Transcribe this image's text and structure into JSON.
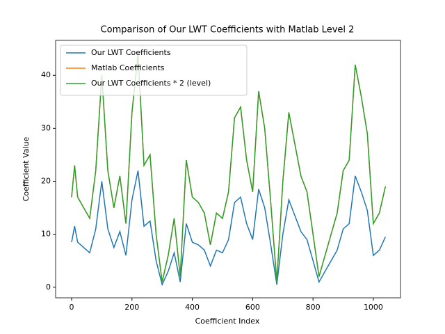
{
  "chart_data": {
    "type": "line",
    "title": "Comparison of Our LWT Coefficients with Matlab Level 2",
    "x_label": "Coefficient Index",
    "y_label": "Coefficient Value",
    "x": [
      0,
      10,
      20,
      40,
      60,
      80,
      100,
      120,
      140,
      160,
      180,
      200,
      220,
      240,
      260,
      280,
      300,
      320,
      340,
      360,
      380,
      400,
      420,
      440,
      460,
      480,
      500,
      520,
      540,
      560,
      580,
      600,
      620,
      640,
      660,
      680,
      700,
      720,
      740,
      760,
      780,
      800,
      820,
      840,
      860,
      880,
      900,
      920,
      940,
      960,
      980,
      1000,
      1020,
      1040
    ],
    "series": [
      {
        "name": "Our LWT Coefficients",
        "color": "#1f77b4",
        "values": [
          8.5,
          11.5,
          8.5,
          7.5,
          6.5,
          11,
          20,
          11,
          7.5,
          10.5,
          6,
          16.5,
          22,
          11.5,
          12.5,
          5,
          0.5,
          3,
          6.5,
          1,
          12,
          8.5,
          8,
          7,
          4,
          7,
          6.5,
          9,
          16,
          17,
          12,
          9,
          18.5,
          15,
          8,
          0.5,
          10,
          16.5,
          13.5,
          10.5,
          9,
          5,
          1,
          3,
          5,
          7,
          11,
          12,
          21,
          18,
          14.5,
          6,
          7,
          9.5
        ]
      },
      {
        "name": "Matlab Coefficients",
        "color": "#ff7f0e",
        "values": [
          17,
          23,
          17,
          15,
          13,
          22,
          40,
          22,
          15,
          21,
          12,
          33,
          44,
          23,
          25,
          10,
          1,
          6,
          13,
          2,
          24,
          17,
          16,
          14,
          8,
          14,
          13,
          18,
          32,
          34,
          24,
          18,
          37,
          30,
          16,
          1,
          20,
          33,
          27,
          21,
          18,
          10,
          2,
          6,
          10,
          14,
          22,
          24,
          42,
          36,
          29,
          12,
          14,
          19
        ]
      },
      {
        "name": "Our LWT Coefficients * 2 (level)",
        "color": "#2ca02c",
        "values": [
          17,
          23,
          17,
          15,
          13,
          22,
          40,
          22,
          15,
          21,
          12,
          33,
          44,
          23,
          25,
          10,
          1,
          6,
          13,
          2,
          24,
          17,
          16,
          14,
          8,
          14,
          13,
          18,
          32,
          34,
          24,
          18,
          37,
          30,
          16,
          1,
          20,
          33,
          27,
          21,
          18,
          10,
          2,
          6,
          10,
          14,
          22,
          24,
          42,
          36,
          29,
          12,
          14,
          19
        ]
      }
    ],
    "xlim": [
      -53,
      1090
    ],
    "ylim": [
      -2,
      46.6
    ],
    "xticks": [
      0,
      200,
      400,
      600,
      800,
      1000
    ],
    "yticks": [
      0,
      10,
      20,
      30,
      40
    ],
    "legend": "upper left"
  }
}
